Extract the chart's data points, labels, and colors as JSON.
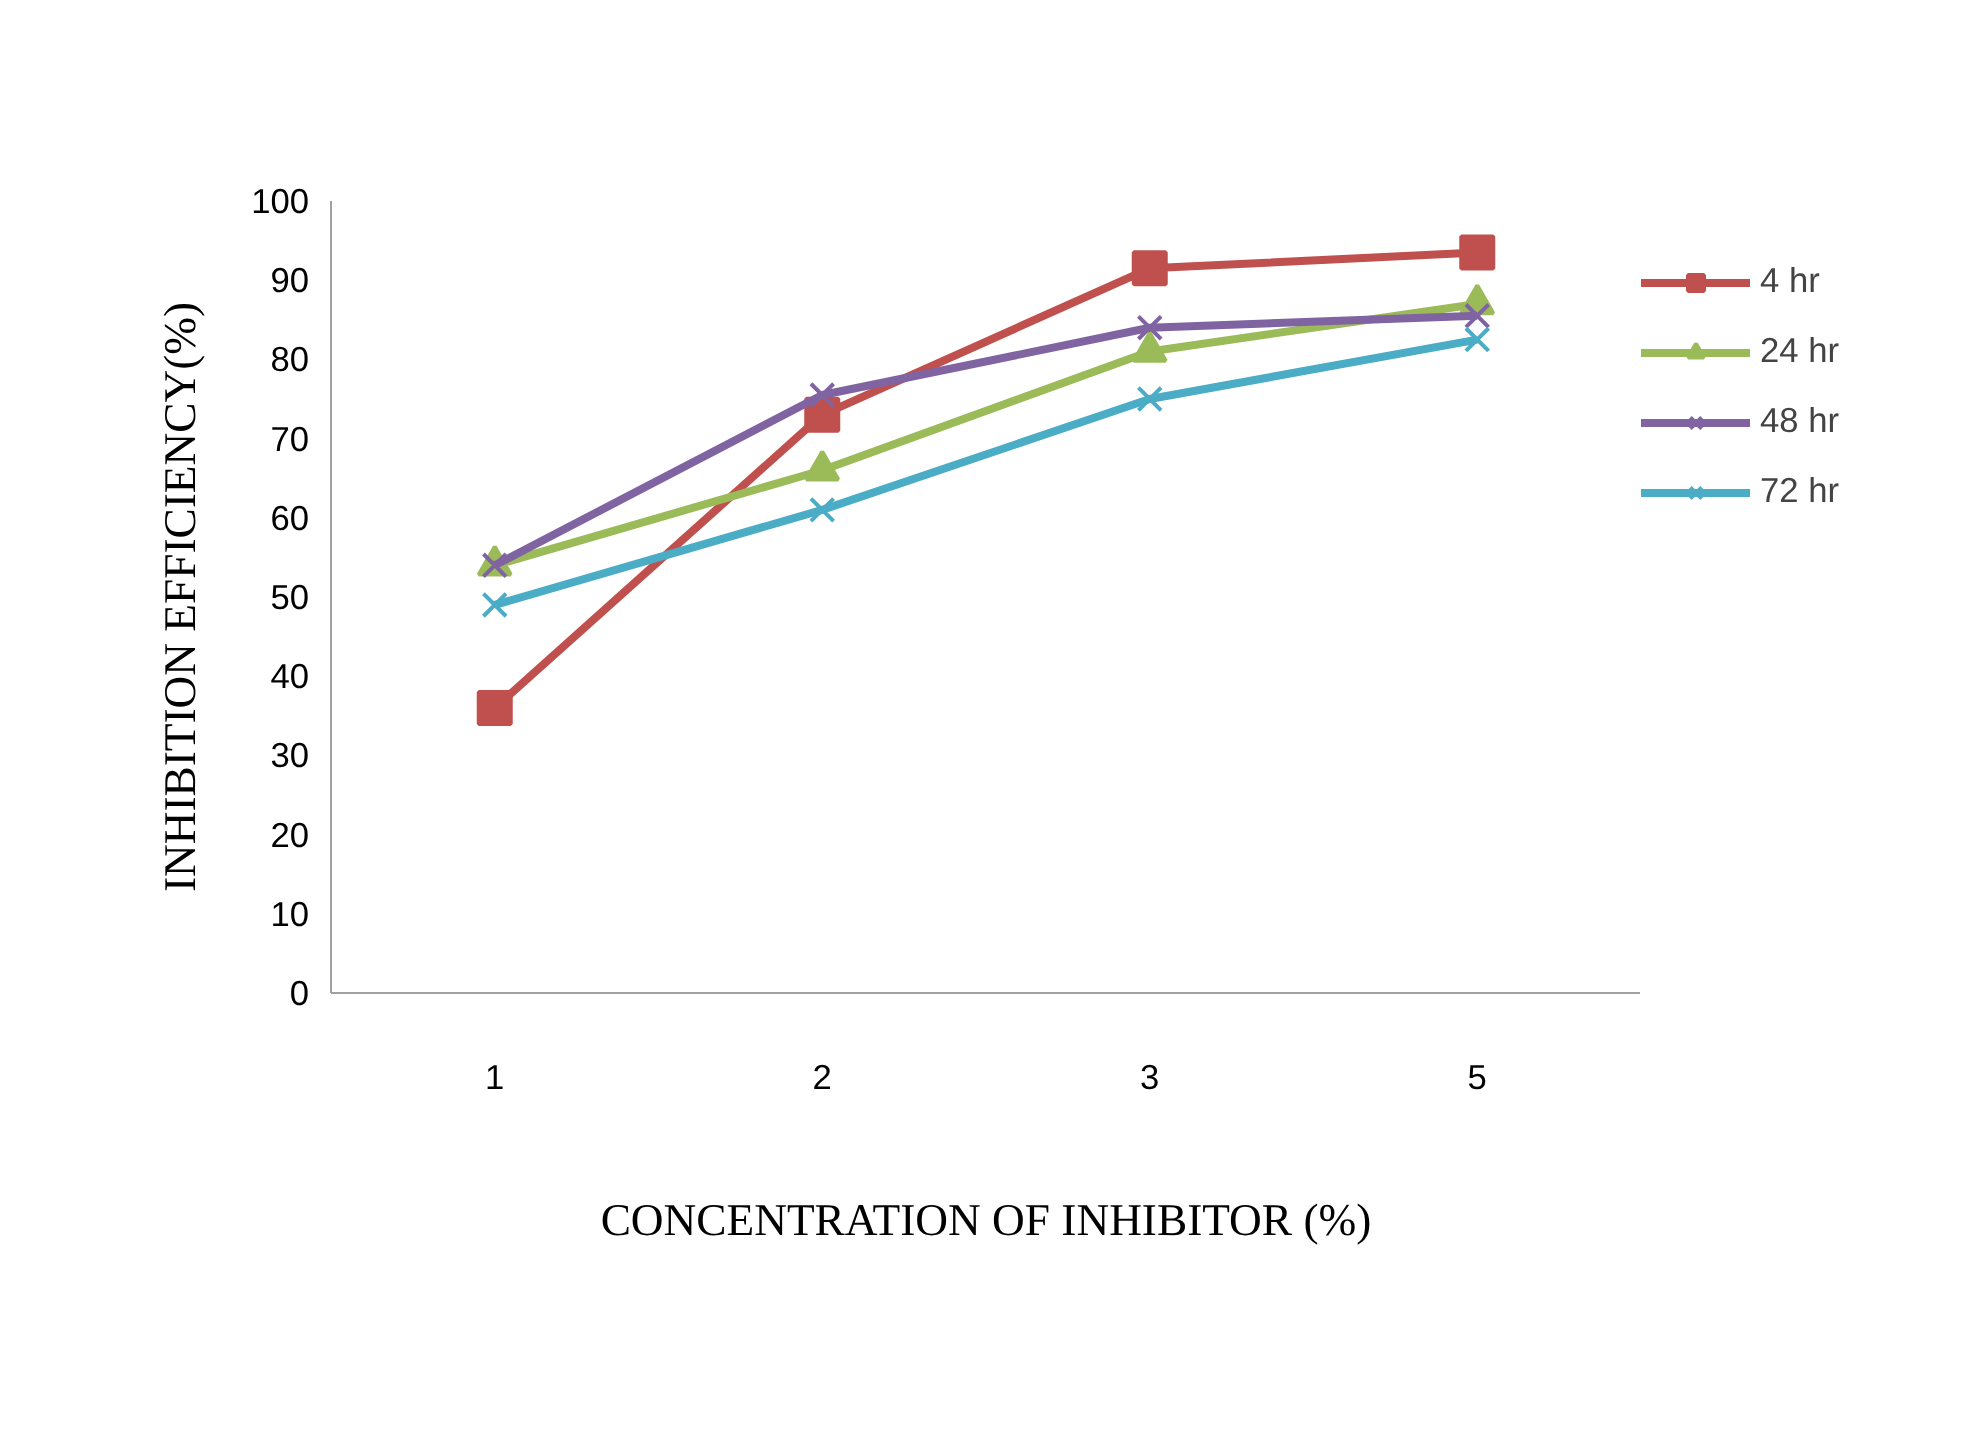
{
  "chart_data": {
    "type": "line",
    "xlabel": "CONCENTRATION OF INHIBITOR (%)",
    "ylabel": "INHIBITION EFFICIENCY(%)",
    "categories": [
      "1",
      "2",
      "3",
      "5"
    ],
    "ylim": [
      0,
      100
    ],
    "yticks": [
      0,
      10,
      20,
      30,
      40,
      50,
      60,
      70,
      80,
      90,
      100
    ],
    "grid": false,
    "legend": "right",
    "series": [
      {
        "name": "4 hr",
        "color": "#c0504d",
        "marker": "square",
        "values": [
          36,
          73,
          91.5,
          93.5
        ]
      },
      {
        "name": "24 hr",
        "color": "#9bbb59",
        "marker": "triangle",
        "values": [
          54,
          66,
          81,
          87
        ]
      },
      {
        "name": "48 hr",
        "color": "#8064a2",
        "marker": "cross",
        "values": [
          54,
          75.5,
          84,
          85.5
        ]
      },
      {
        "name": "72 hr",
        "color": "#4bacc6",
        "marker": "cross",
        "values": [
          49,
          61,
          75,
          82.5
        ]
      }
    ]
  }
}
